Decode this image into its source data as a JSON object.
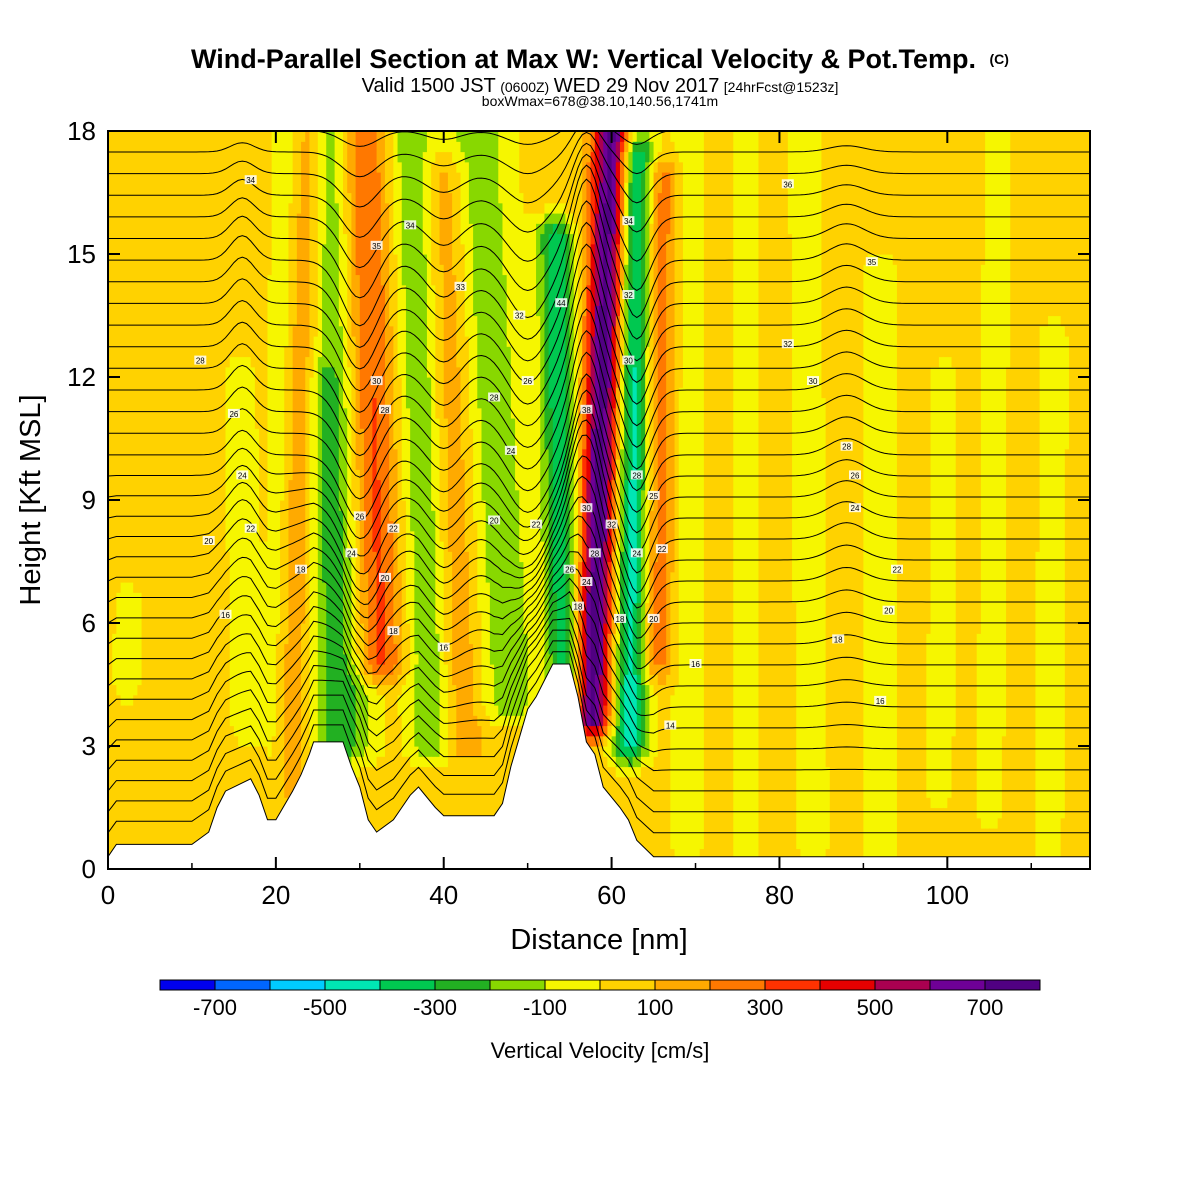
{
  "chart_data": {
    "type": "heatmap",
    "title": "Wind-Parallel Section at Max W: Vertical Velocity & Pot.Temp.",
    "title_mark": "(C)",
    "subtitle": {
      "part1": "Valid 1500 JST",
      "part2": "(0600Z)",
      "part3": "WED 29 Nov 2017",
      "part4": "[24hrFcst@1523z]"
    },
    "subtitle2": "boxWmax=678@38.10,140.56,1741m",
    "xlabel": "Distance [nm]",
    "ylabel": "Height [Kft MSL]",
    "xlim": [
      0,
      117
    ],
    "ylim": [
      0,
      18
    ],
    "xticks": [
      0,
      20,
      40,
      60,
      80,
      100
    ],
    "yticks": [
      0,
      3,
      6,
      9,
      12,
      15,
      18
    ],
    "colorbar": {
      "label": "Vertical Velocity [cm/s]",
      "bounds": [
        -800,
        -700,
        -600,
        -500,
        -400,
        -300,
        -200,
        -100,
        0,
        100,
        200,
        300,
        400,
        500,
        600,
        700,
        800
      ],
      "colors": [
        "#0000ee",
        "#0066ff",
        "#00ccff",
        "#00e6b4",
        "#00c850",
        "#22b022",
        "#88d800",
        "#f6f600",
        "#ffd200",
        "#ffaa00",
        "#ff7800",
        "#ff3200",
        "#e60000",
        "#aa0050",
        "#6e0096",
        "#500082"
      ],
      "tick_labels": [
        -700,
        -500,
        -300,
        -100,
        100,
        300,
        500,
        700
      ]
    },
    "terrain": {
      "x": [
        0,
        1,
        10,
        12,
        13,
        14,
        17,
        18,
        19,
        20,
        22,
        23,
        24,
        24.5,
        28,
        29,
        30,
        31,
        32,
        34,
        35,
        36,
        37,
        39,
        40,
        41,
        46,
        47,
        48,
        49,
        50,
        51,
        52,
        53,
        55,
        56,
        57,
        58,
        59,
        61,
        62,
        63,
        64,
        65,
        117
      ],
      "height_kft": [
        0.3,
        0.6,
        0.6,
        0.9,
        1.5,
        1.9,
        2.2,
        1.8,
        1.2,
        1.2,
        1.9,
        2.3,
        2.8,
        3.1,
        3.1,
        2.5,
        2.0,
        1.2,
        0.9,
        1.2,
        1.5,
        1.8,
        2.0,
        1.5,
        1.3,
        1.3,
        1.3,
        1.6,
        2.5,
        3.2,
        3.9,
        4.2,
        4.6,
        5.0,
        5.0,
        4.2,
        3.1,
        2.8,
        2.0,
        1.5,
        1.2,
        0.7,
        0.5,
        0.3,
        0.3
      ],
      "color": "#ffffff"
    },
    "background_w": 30,
    "w_features": [
      {
        "x_bottom": 2,
        "x_top": 3,
        "w": -90,
        "width": 1.5,
        "y_bottom": 4.5,
        "y_top": 6.5
      },
      {
        "x_bottom": 17,
        "x_top": 15,
        "w": -120,
        "width": 1.6,
        "y_bottom": 3.5,
        "y_top": 12
      },
      {
        "x_bottom": 20,
        "x_top": 21,
        "w": -90,
        "width": 1.5,
        "y_bottom": 2,
        "y_top": 18
      },
      {
        "x_bottom": 21,
        "x_top": 24,
        "w": 150,
        "width": 1.8,
        "y_bottom": 2,
        "y_top": 18
      },
      {
        "x_bottom": 27,
        "x_top": 25,
        "w": -120,
        "width": 1.8,
        "y_bottom": 1.5,
        "y_top": 12
      },
      {
        "x_bottom": 29,
        "x_top": 27,
        "w": -250,
        "width": 3,
        "y_bottom": 3,
        "y_top": 18
      },
      {
        "x_bottom": 33,
        "x_top": 30,
        "w": 330,
        "width": 3,
        "y_bottom": 5,
        "y_top": 18
      },
      {
        "x_bottom": 39,
        "x_top": 36,
        "w": -220,
        "width": 2.5,
        "y_bottom": 3,
        "y_top": 18
      },
      {
        "x_bottom": 43,
        "x_top": 40,
        "w": 150,
        "width": 2.5,
        "y_bottom": 3,
        "y_top": 17
      },
      {
        "x_bottom": 49,
        "x_top": 44,
        "w": -200,
        "width": 3.5,
        "y_bottom": 4,
        "y_top": 18
      },
      {
        "x_bottom": 55,
        "x_top": 53,
        "w": -420,
        "width": 2,
        "y_bottom": 3.5,
        "y_top": 15.5
      },
      {
        "x_bottom": 57,
        "x_top": 60,
        "w": 720,
        "width": 2.2,
        "y_bottom": 3.6,
        "y_top": 18
      },
      {
        "x_bottom": 62,
        "x_top": 63,
        "w": -500,
        "width": 2,
        "y_bottom": 3,
        "y_top": 17.5
      },
      {
        "x_bottom": 65,
        "x_top": 66,
        "w": 240,
        "width": 2,
        "y_bottom": 5,
        "y_top": 17
      },
      {
        "x_bottom": 69,
        "x_top": 69,
        "w": -90,
        "width": 1.7,
        "y_bottom": 0.5,
        "y_top": 18
      },
      {
        "x_bottom": 76,
        "x_top": 76,
        "w": -90,
        "width": 1.6,
        "y_bottom": 0.5,
        "y_top": 18
      },
      {
        "x_bottom": 84,
        "x_top": 83,
        "w": -90,
        "width": 1.8,
        "y_bottom": 0.5,
        "y_top": 18
      },
      {
        "x_bottom": 92,
        "x_top": 92,
        "w": -120,
        "width": 1.8,
        "y_bottom": 0.5,
        "y_top": 14.5
      },
      {
        "x_bottom": 99,
        "x_top": 100,
        "w": -90,
        "width": 1.5,
        "y_bottom": 2,
        "y_top": 12
      },
      {
        "x_bottom": 105,
        "x_top": 106,
        "w": -90,
        "width": 1.5,
        "y_bottom": 1.5,
        "y_top": 18
      },
      {
        "x_bottom": 112,
        "x_top": 113,
        "w": -90,
        "width": 1.6,
        "y_bottom": 0.5,
        "y_top": 13
      }
    ],
    "contour_levels_n": 36,
    "contour_labels": [
      {
        "x": 17,
        "y": 16.8,
        "text": "34"
      },
      {
        "x": 32,
        "y": 15.2,
        "text": "35"
      },
      {
        "x": 36,
        "y": 15.7,
        "text": "34"
      },
      {
        "x": 42,
        "y": 14.2,
        "text": "33"
      },
      {
        "x": 49,
        "y": 13.5,
        "text": "32"
      },
      {
        "x": 54,
        "y": 13.8,
        "text": "44"
      },
      {
        "x": 62,
        "y": 15.8,
        "text": "34"
      },
      {
        "x": 62,
        "y": 14.0,
        "text": "32"
      },
      {
        "x": 81,
        "y": 16.7,
        "text": "36"
      },
      {
        "x": 91,
        "y": 14.8,
        "text": "35"
      },
      {
        "x": 11,
        "y": 12.4,
        "text": "28"
      },
      {
        "x": 15,
        "y": 11.1,
        "text": "26"
      },
      {
        "x": 16,
        "y": 9.6,
        "text": "24"
      },
      {
        "x": 17,
        "y": 8.3,
        "text": "22"
      },
      {
        "x": 12,
        "y": 8.0,
        "text": "20"
      },
      {
        "x": 23,
        "y": 7.3,
        "text": "18"
      },
      {
        "x": 14,
        "y": 6.2,
        "text": "16"
      },
      {
        "x": 32,
        "y": 11.9,
        "text": "30"
      },
      {
        "x": 33,
        "y": 11.2,
        "text": "28"
      },
      {
        "x": 30,
        "y": 8.6,
        "text": "26"
      },
      {
        "x": 34,
        "y": 8.3,
        "text": "22"
      },
      {
        "x": 29,
        "y": 7.7,
        "text": "24"
      },
      {
        "x": 33,
        "y": 7.1,
        "text": "20"
      },
      {
        "x": 34,
        "y": 5.8,
        "text": "18"
      },
      {
        "x": 40,
        "y": 5.4,
        "text": "16"
      },
      {
        "x": 46,
        "y": 11.5,
        "text": "28"
      },
      {
        "x": 50,
        "y": 11.9,
        "text": "26"
      },
      {
        "x": 48,
        "y": 10.2,
        "text": "24"
      },
      {
        "x": 46,
        "y": 8.5,
        "text": "20"
      },
      {
        "x": 51,
        "y": 8.4,
        "text": "22"
      },
      {
        "x": 57,
        "y": 11.2,
        "text": "38"
      },
      {
        "x": 57,
        "y": 8.8,
        "text": "30"
      },
      {
        "x": 60,
        "y": 8.4,
        "text": "32"
      },
      {
        "x": 58,
        "y": 7.7,
        "text": "28"
      },
      {
        "x": 55,
        "y": 7.3,
        "text": "26"
      },
      {
        "x": 57,
        "y": 7.0,
        "text": "24"
      },
      {
        "x": 56,
        "y": 6.4,
        "text": "18"
      },
      {
        "x": 61,
        "y": 6.1,
        "text": "18"
      },
      {
        "x": 62,
        "y": 12.4,
        "text": "30"
      },
      {
        "x": 63,
        "y": 9.6,
        "text": "28"
      },
      {
        "x": 65,
        "y": 9.1,
        "text": "25"
      },
      {
        "x": 63,
        "y": 7.7,
        "text": "24"
      },
      {
        "x": 66,
        "y": 7.8,
        "text": "22"
      },
      {
        "x": 65,
        "y": 6.1,
        "text": "20"
      },
      {
        "x": 70,
        "y": 5.0,
        "text": "16"
      },
      {
        "x": 67,
        "y": 3.5,
        "text": "14"
      },
      {
        "x": 81,
        "y": 12.8,
        "text": "32"
      },
      {
        "x": 84,
        "y": 11.9,
        "text": "30"
      },
      {
        "x": 88,
        "y": 10.3,
        "text": "28"
      },
      {
        "x": 89,
        "y": 9.6,
        "text": "26"
      },
      {
        "x": 89,
        "y": 8.8,
        "text": "24"
      },
      {
        "x": 94,
        "y": 7.3,
        "text": "22"
      },
      {
        "x": 93,
        "y": 6.3,
        "text": "20"
      },
      {
        "x": 87,
        "y": 5.6,
        "text": "18"
      },
      {
        "x": 92,
        "y": 4.1,
        "text": "16"
      }
    ]
  }
}
